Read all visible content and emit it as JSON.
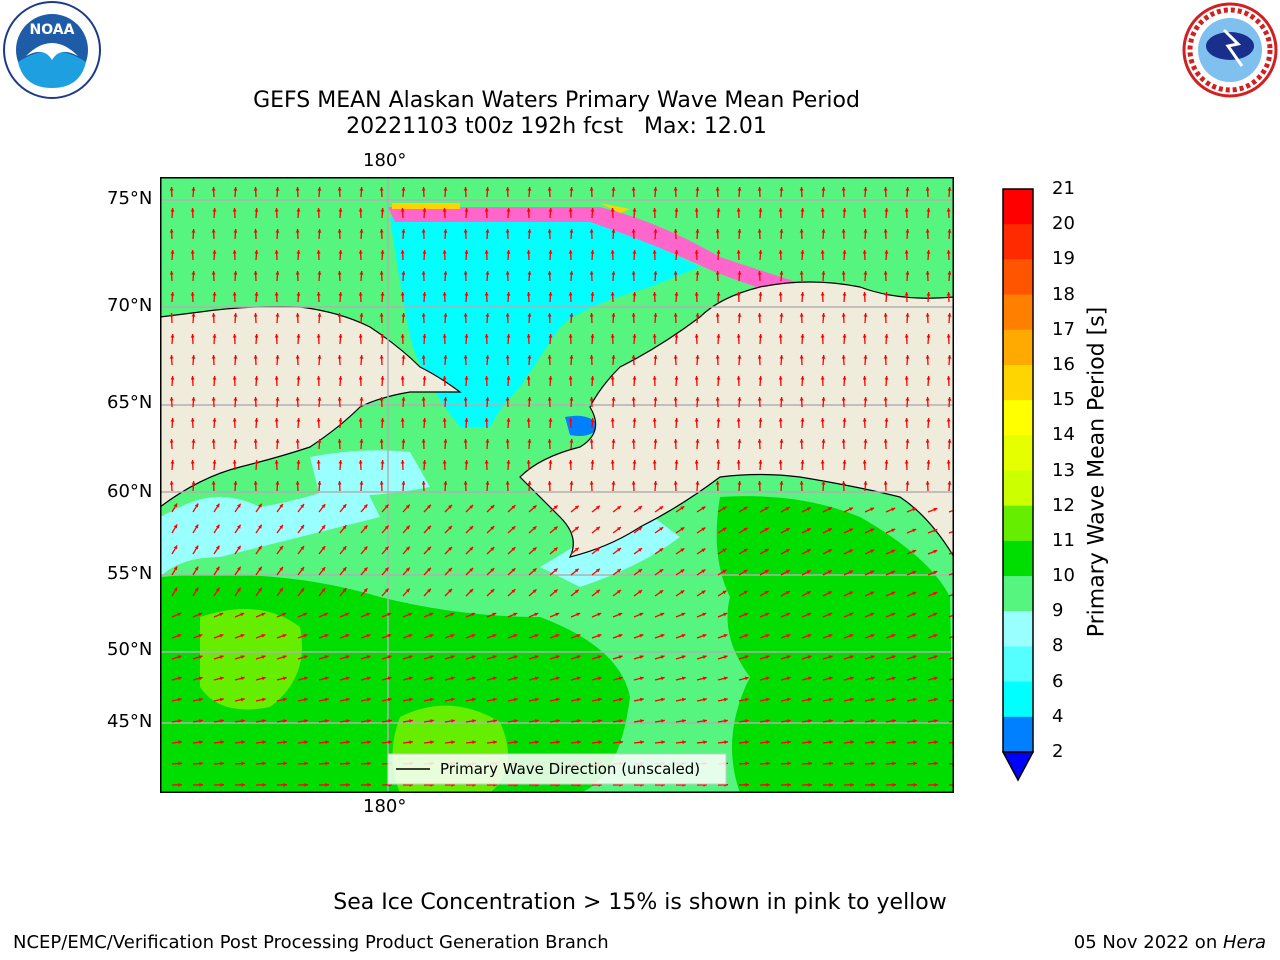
{
  "header": {
    "title_line1": "GEFS MEAN Alaskan Waters Primary Wave Mean Period",
    "title_line2": "20221103 t00z 192h fcst   Max: 12.01"
  },
  "logos": {
    "left": "noaa-logo",
    "right": "national-weather-service-logo"
  },
  "map": {
    "lon_labels": {
      "top": "180°",
      "bottom": "180°"
    },
    "lat_labels": [
      "75°N",
      "70°N",
      "65°N",
      "60°N",
      "55°N",
      "50°N",
      "45°N"
    ],
    "legend_text": "Primary Wave Direction (unscaled)",
    "colors": {
      "land": "#efecdc",
      "frame": "#000000",
      "arrow": "#ff0000",
      "grid": "#b0b0b0"
    }
  },
  "colorbar": {
    "label": "Primary Wave Mean Period [s]",
    "ticks": [
      "21",
      "20",
      "19",
      "18",
      "17",
      "16",
      "15",
      "14",
      "13",
      "12",
      "11",
      "10",
      "9",
      "8",
      "6",
      "4",
      "2"
    ],
    "colors": [
      "#ff0000",
      "#ff2a00",
      "#ff5500",
      "#ff8000",
      "#ffaa00",
      "#ffd500",
      "#ffff00",
      "#e6ff00",
      "#ccff00",
      "#66ee00",
      "#00dd00",
      "#55f580",
      "#99ffff",
      "#55ffff",
      "#00ffff",
      "#0080ff",
      "#0000ff"
    ]
  },
  "notes": {
    "sea_ice": "Sea Ice Concentration > 15% is shown in pink to yellow",
    "credit": "NCEP/EMC/Verification Post Processing Product Generation Branch",
    "date": "05 Nov 2022 on ",
    "machine": "Hera"
  }
}
